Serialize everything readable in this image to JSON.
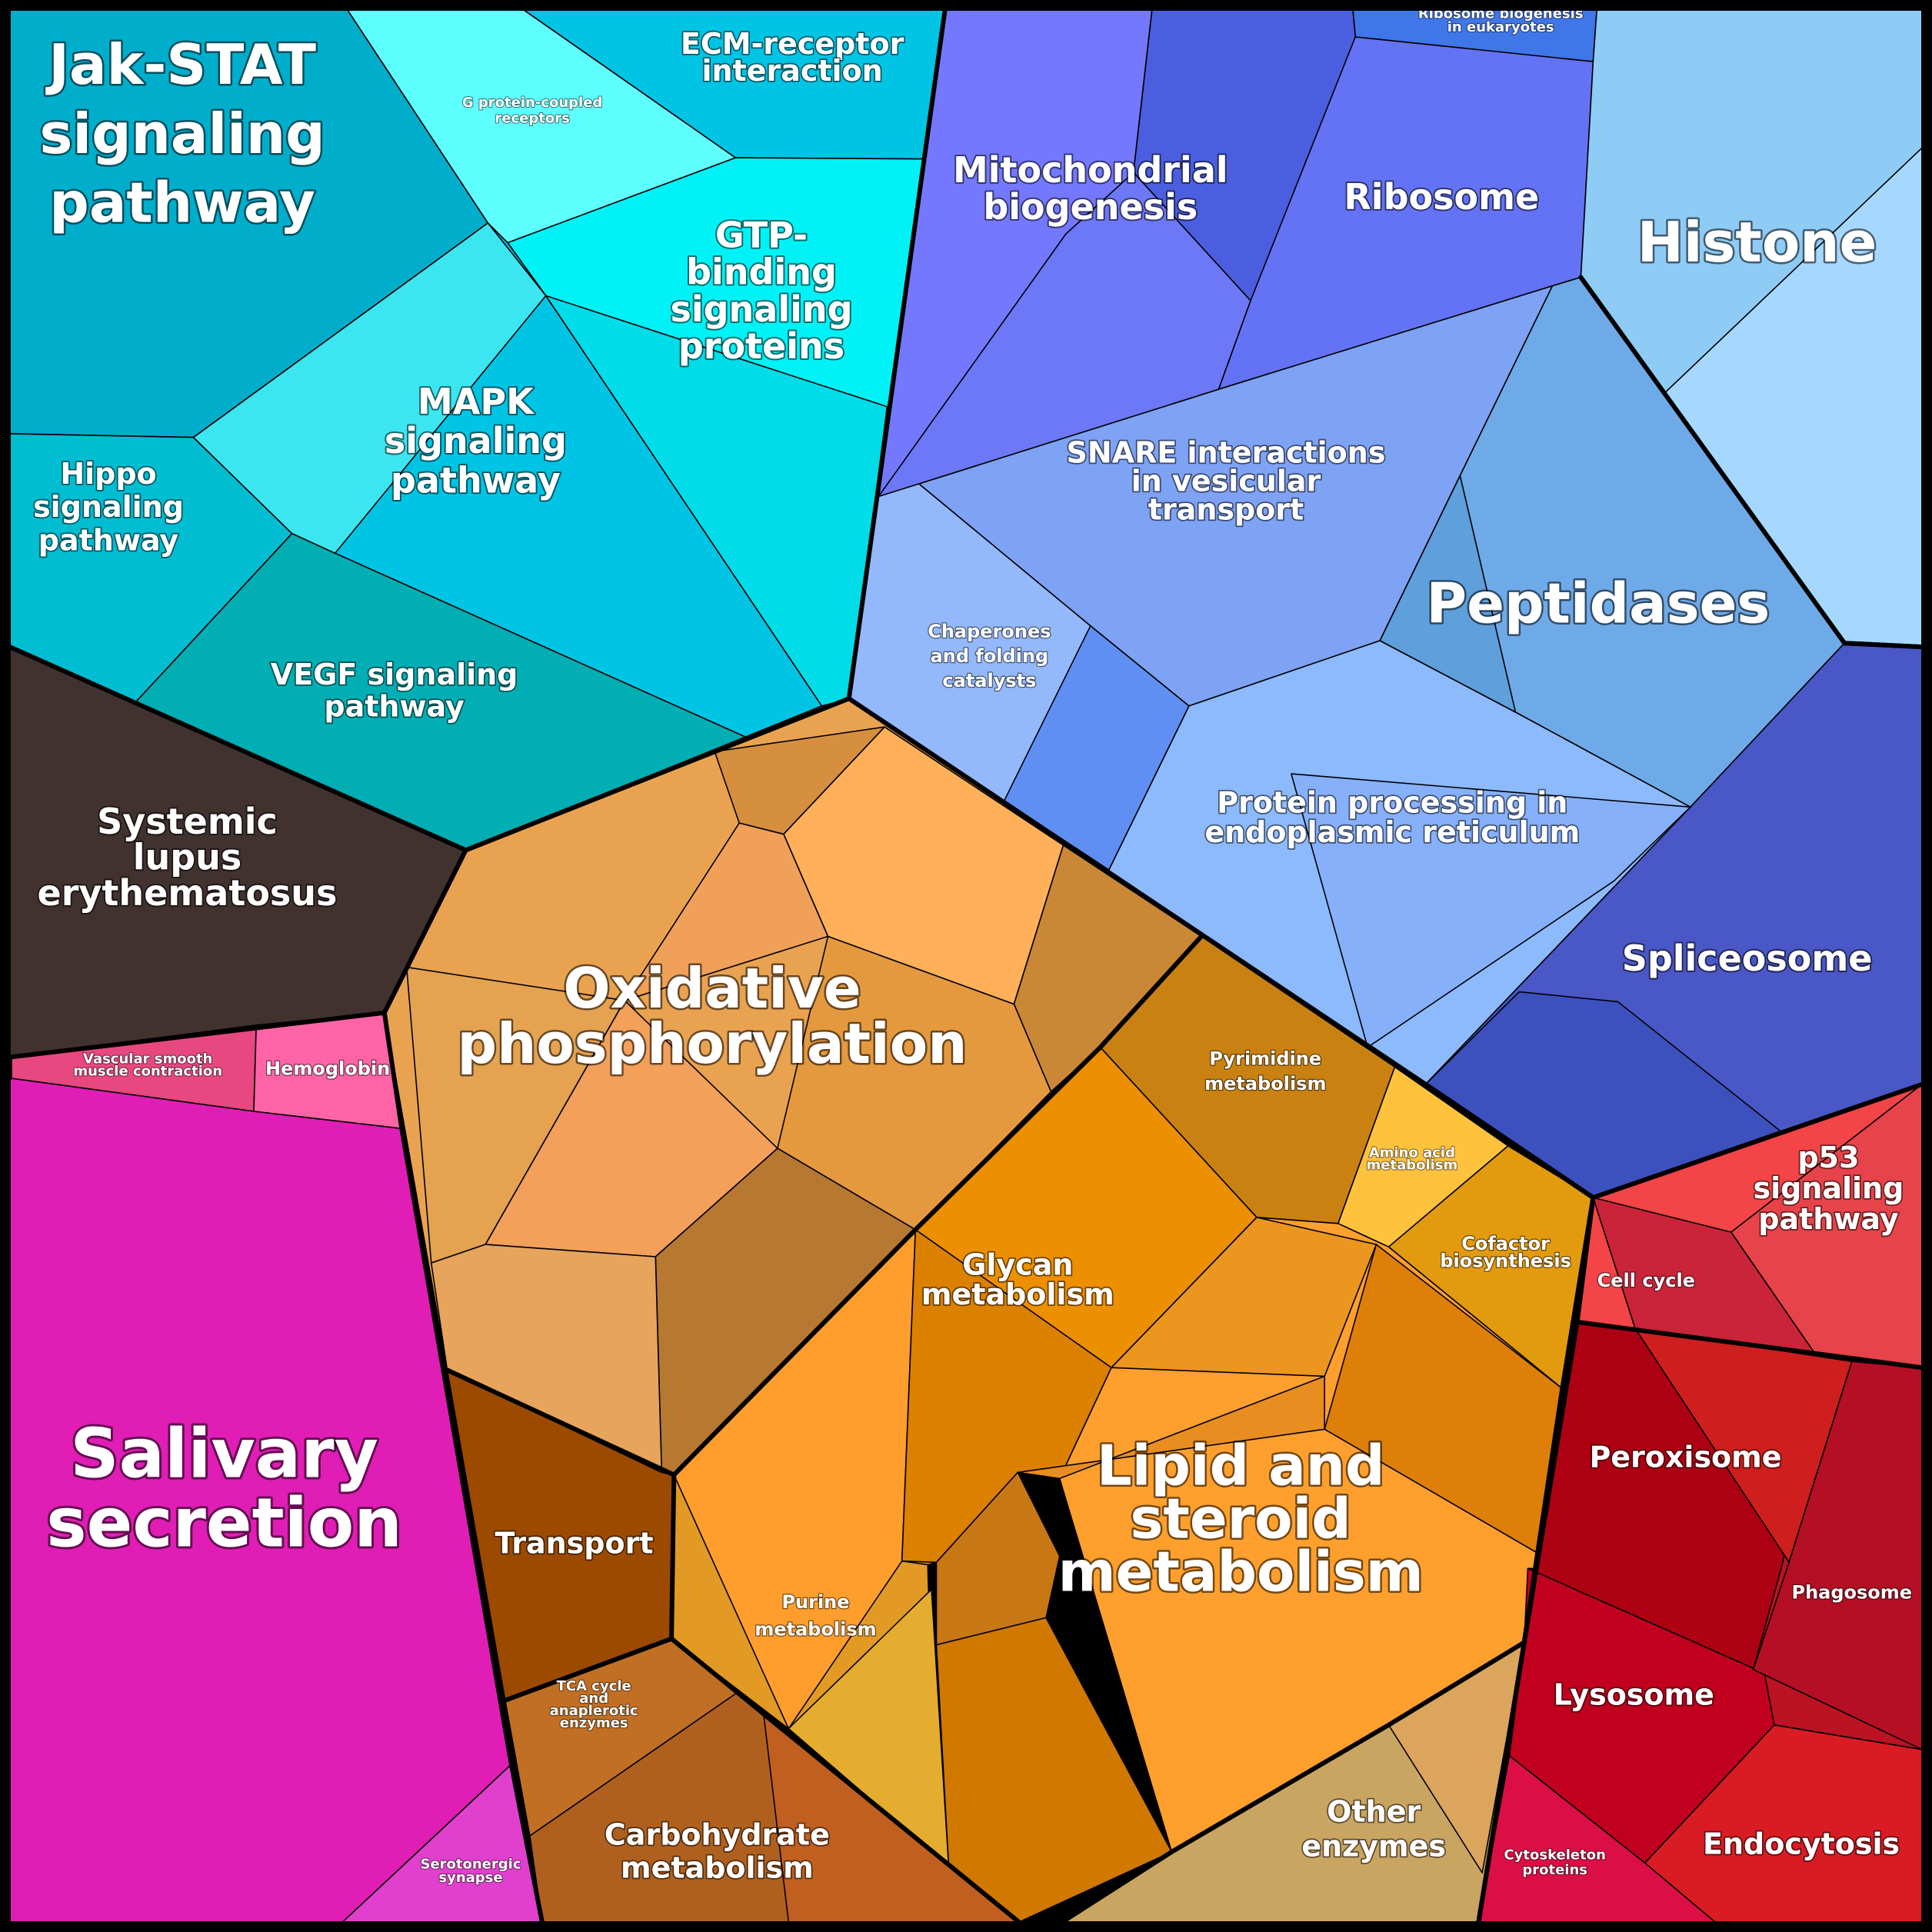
{
  "chart_data": {
    "type": "voronoi-treemap",
    "cells": [
      {
        "id": "jak_stat",
        "label": [
          "Jak-STAT",
          "signaling",
          "pathway"
        ],
        "color": "#00AECC"
      },
      {
        "id": "g_protein",
        "label": [
          "G protein-coupled",
          "receptors"
        ],
        "color": "#5EFFFF"
      },
      {
        "id": "ecm",
        "label": [
          "ECM-receptor",
          "interaction"
        ],
        "color": "#00C4E4"
      },
      {
        "id": "gtp",
        "label": [
          "GTP-",
          "binding",
          "signaling",
          "proteins"
        ],
        "color": "#00F2F6"
      },
      {
        "id": "mapk",
        "label": [
          "MAPK",
          "signaling",
          "pathway"
        ],
        "color": "#00C4E4"
      },
      {
        "id": "hippo",
        "label": [
          "Hippo",
          "signaling",
          "pathway"
        ],
        "color": "#00BDD2"
      },
      {
        "id": "vegf",
        "label": [
          "VEGF signaling",
          "pathway"
        ],
        "color": "#00AEB4"
      },
      {
        "id": "sle",
        "label": [
          "Systemic",
          "lupus",
          "erythematosus"
        ],
        "color": "#413230"
      },
      {
        "id": "vascular",
        "label": [
          "Vascular smooth",
          "muscle contraction"
        ],
        "color": "#E6487F"
      },
      {
        "id": "hemoglobin",
        "label": [
          "Hemoglobin"
        ],
        "color": "#FF65A6"
      },
      {
        "id": "salivary",
        "label": [
          "Salivary",
          "secretion"
        ],
        "color": "#E01EB5"
      },
      {
        "id": "serotonergic",
        "label": [
          "Serotonergic",
          "synapse"
        ],
        "color": "#E040CD"
      },
      {
        "id": "mito",
        "label": [
          "Mitochondrial",
          "biogenesis"
        ],
        "color": "#7478FF"
      },
      {
        "id": "ribo_bio",
        "label": [
          "Ribosome biogenesis",
          "in eukaryotes"
        ],
        "color": "#3F76E8"
      },
      {
        "id": "ribosome",
        "label": [
          "Ribosome"
        ],
        "color": "#6473F5"
      },
      {
        "id": "histone",
        "label": [
          "Histone"
        ],
        "color": "#8ECBF5"
      },
      {
        "id": "snare",
        "label": [
          "SNARE interactions",
          "in vesicular",
          "transport"
        ],
        "color": "#7EA2F4"
      },
      {
        "id": "peptidases",
        "label": [
          "Peptidases"
        ],
        "color": "#6FAAE8"
      },
      {
        "id": "chaperones",
        "label": [
          "Chaperones",
          "and folding",
          "catalysts"
        ],
        "color": "#94B8FC"
      },
      {
        "id": "protein_er",
        "label": [
          "Protein processing in",
          "endoplasmic reticulum"
        ],
        "color": "#8CBAFC"
      },
      {
        "id": "spliceosome",
        "label": [
          "Spliceosome"
        ],
        "color": "#4A57C6"
      },
      {
        "id": "oxphos",
        "label": [
          "Oxidative",
          "phosphorylation"
        ],
        "color": "#E9A350"
      },
      {
        "id": "pyrimidine",
        "label": [
          "Pyrimidine",
          "metabolism"
        ],
        "color": "#C98212"
      },
      {
        "id": "amino_acid",
        "label": [
          "Amino acid",
          "metabolism"
        ],
        "color": "#FFC23D"
      },
      {
        "id": "cofactor",
        "label": [
          "Cofactor",
          "biosynthesis"
        ],
        "color": "#E29A0F"
      },
      {
        "id": "glycan",
        "label": [
          "Glycan",
          "metabolism"
        ],
        "color": "#EC8F00"
      },
      {
        "id": "lipid",
        "label": [
          "Lipid and",
          "steroid",
          "metabolism"
        ],
        "color": "#FF9F2E"
      },
      {
        "id": "transport",
        "label": [
          "Transport"
        ],
        "color": "#9C4A00"
      },
      {
        "id": "purine",
        "label": [
          "Purine",
          "metabolism"
        ],
        "color": "#E29A25"
      },
      {
        "id": "tca",
        "label": [
          "TCA cycle",
          "and",
          "anaplerotic",
          "enzymes"
        ],
        "color": "#C06F24"
      },
      {
        "id": "carbohydrate",
        "label": [
          "Carbohydrate",
          "metabolism"
        ],
        "color": "#B0601E"
      },
      {
        "id": "other_enzymes",
        "label": [
          "Other",
          "enzymes"
        ],
        "color": "#C9A562"
      },
      {
        "id": "p53",
        "label": [
          "p53",
          "signaling",
          "pathway"
        ],
        "color": "#F34447"
      },
      {
        "id": "cell_cycle",
        "label": [
          "Cell cycle"
        ],
        "color": "#C9243A"
      },
      {
        "id": "peroxisome",
        "label": [
          "Peroxisome"
        ],
        "color": "#AD0012"
      },
      {
        "id": "phagosome",
        "label": [
          "Phagosome"
        ],
        "color": "#BB1224"
      },
      {
        "id": "lysosome",
        "label": [
          "Lysosome"
        ],
        "color": "#C0001E"
      },
      {
        "id": "endocytosis",
        "label": [
          "Endocytosis"
        ],
        "color": "#D91C24"
      },
      {
        "id": "cytoskeleton",
        "label": [
          "Cytoskeleton",
          "proteins"
        ],
        "color": "#DB0E45"
      }
    ]
  }
}
